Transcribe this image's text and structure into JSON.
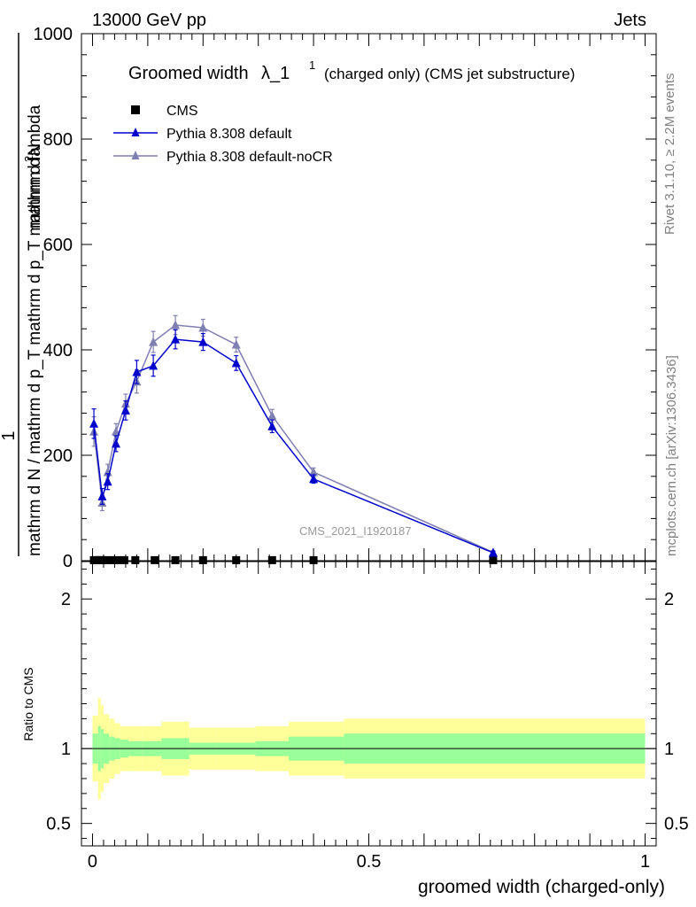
{
  "header": {
    "left": "13000 GeV pp",
    "right": "Jets"
  },
  "title": {
    "main": "Groomed width",
    "symbol": "λ_1",
    "superscript": "1",
    "detail": "(charged only) (CMS jet substructure)"
  },
  "side_labels": {
    "rivet": "Rivet 3.1.10, ≥ 2.2M events",
    "mcplots": "mcplots.cern.ch [arXiv:1306.3436]"
  },
  "watermark": "CMS_2021_I1920187",
  "colors": {
    "cms": "#000000",
    "default": "#0000cc",
    "nocr": "#7f7fb2",
    "band_inner": "#99ff99",
    "band_outer": "#ffff99"
  },
  "chart_data": [
    {
      "type": "line",
      "panel": "main",
      "xlim": [
        -0.02,
        1.02
      ],
      "ylim": [
        0,
        1000
      ],
      "ylabel": {
        "fraction_top": "1",
        "fraction_bottom": "mathrm d N / mathrm d p_T mathrm d p_T mathrm d lambda",
        "lead": "mathrm d",
        "superscript": "2",
        "sup_tail": "N"
      },
      "yticks": [
        0,
        200,
        400,
        600,
        800,
        1000
      ],
      "yticklabels": [
        "0",
        "200",
        "400",
        "600",
        "800",
        "1000"
      ],
      "legend": {
        "placement": "top-left"
      },
      "series": [
        {
          "name": "CMS",
          "marker": "square",
          "x": [
            0.0025,
            0.0075,
            0.0125,
            0.0175,
            0.025,
            0.035,
            0.045,
            0.0575,
            0.0775,
            0.1125,
            0.15,
            0.2,
            0.26,
            0.325,
            0.4,
            0.725
          ],
          "y": [
            1,
            1,
            1,
            1,
            1,
            1,
            1,
            1,
            1,
            1,
            1,
            1,
            1,
            1,
            1,
            1
          ]
        },
        {
          "name": "Pythia 8.308 default",
          "marker": "triangle",
          "x": [
            0.0025,
            0.0175,
            0.0275,
            0.0425,
            0.06,
            0.08,
            0.11,
            0.15,
            0.2,
            0.26,
            0.325,
            0.4,
            0.725
          ],
          "y": [
            260,
            122,
            150,
            222,
            285,
            358,
            370,
            420,
            415,
            375,
            255,
            155,
            15
          ],
          "yerr": [
            28,
            15,
            15,
            15,
            18,
            22,
            20,
            18,
            16,
            14,
            12,
            8,
            3
          ]
        },
        {
          "name": "Pythia 8.308 default-noCR",
          "marker": "triangle",
          "x": [
            0.0025,
            0.0175,
            0.0275,
            0.0425,
            0.06,
            0.08,
            0.11,
            0.15,
            0.2,
            0.26,
            0.325,
            0.4,
            0.725
          ],
          "y": [
            245,
            110,
            168,
            245,
            298,
            340,
            415,
            447,
            442,
            410,
            275,
            168,
            16
          ],
          "yerr": [
            28,
            15,
            15,
            15,
            18,
            22,
            20,
            18,
            16,
            14,
            12,
            8,
            3
          ]
        }
      ]
    },
    {
      "type": "area",
      "panel": "ratio",
      "xlim": [
        -0.02,
        1.02
      ],
      "ylim": [
        0.35,
        2.25
      ],
      "ylabel": "Ratio to CMS",
      "xlabel": "groomed width (charged-only)",
      "yticks": [
        0.5,
        1,
        2
      ],
      "yticklabels": [
        "0.5",
        "1",
        "2"
      ],
      "xticks": [
        0,
        0.5,
        1
      ],
      "xticklabels": [
        "0",
        "0.5",
        "1"
      ],
      "reference_line": 1,
      "bins": {
        "edges": [
          0,
          0.005,
          0.01,
          0.015,
          0.02,
          0.03,
          0.04,
          0.05,
          0.065,
          0.09,
          0.125,
          0.175,
          0.225,
          0.295,
          0.355,
          0.455,
          1.0
        ],
        "inner_half_width": [
          0.1,
          0.1,
          0.15,
          0.13,
          0.1,
          0.08,
          0.07,
          0.06,
          0.05,
          0.05,
          0.07,
          0.04,
          0.04,
          0.05,
          0.08,
          0.1
        ],
        "outer_half_width": [
          0.22,
          0.22,
          0.34,
          0.29,
          0.23,
          0.2,
          0.17,
          0.15,
          0.15,
          0.15,
          0.18,
          0.14,
          0.14,
          0.15,
          0.18,
          0.2
        ]
      }
    }
  ]
}
